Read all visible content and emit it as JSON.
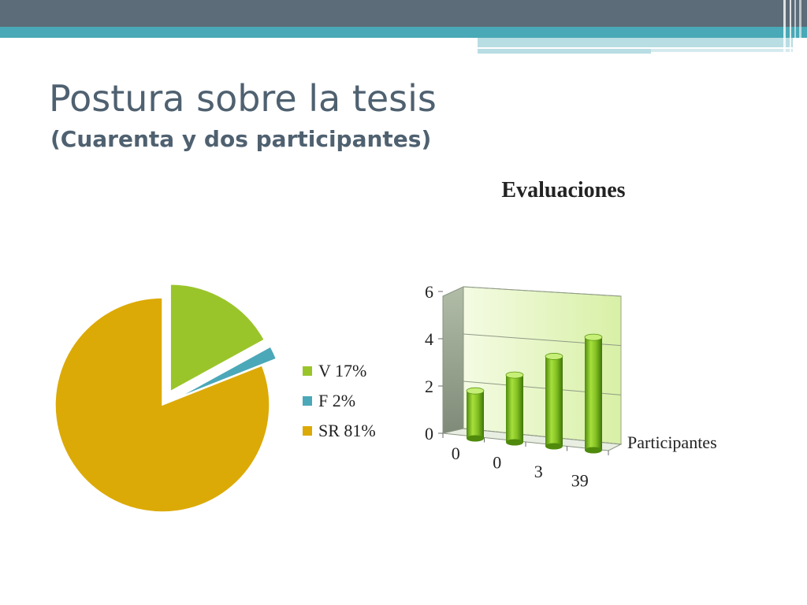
{
  "slide": {
    "title": "Postura sobre la tesis",
    "subtitle": "(Cuarenta y dos participantes)"
  },
  "colors": {
    "header_dark": "#5c6c78",
    "header_teal": "#4aa9b6",
    "header_light": "#b8dde3",
    "title_text": "#4f6170",
    "pie_v": "#9ac52a",
    "pie_f": "#4ba8b8",
    "pie_sr": "#dcaa06",
    "bar_green": "#82bf22",
    "plot_bg": "#d8f0a6"
  },
  "chart_data": [
    {
      "type": "pie",
      "title": "",
      "slices": [
        {
          "label": "V 17%",
          "value": 17,
          "color": "#9ac52a",
          "exploded": true
        },
        {
          "label": "F 2%",
          "value": 2,
          "color": "#4ba8b8",
          "exploded": true
        },
        {
          "label": "SR 81%",
          "value": 81,
          "color": "#dcaa06",
          "exploded": false
        }
      ],
      "legend_position": "right"
    },
    {
      "type": "bar",
      "title": "Evaluaciones",
      "categories": [
        "0",
        "0",
        "3",
        "39"
      ],
      "series": [
        {
          "name": "Participantes",
          "values": [
            2,
            2.8,
            3.7,
            4.6
          ]
        }
      ],
      "xlabel": "",
      "ylabel": "",
      "ylim": [
        0,
        6
      ],
      "yticks": [
        "0",
        "2",
        "4",
        "6"
      ],
      "grid": true,
      "style": "3d-cylinder"
    }
  ]
}
